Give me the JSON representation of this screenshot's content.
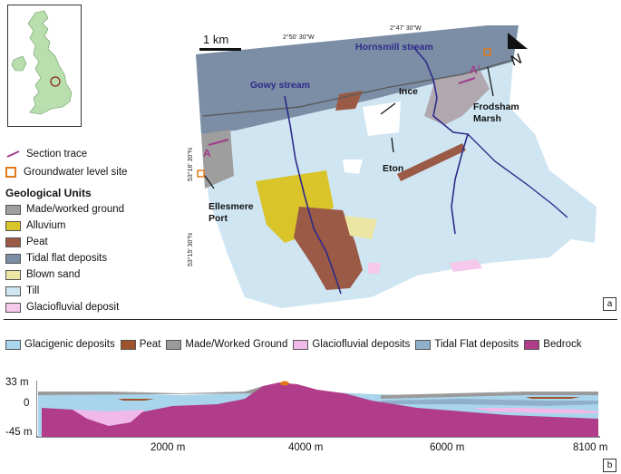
{
  "inset_map": {
    "site_marker_color": "#8b2a1a",
    "land_color": "#b9dfae"
  },
  "map": {
    "scale_bar_label": "1 km",
    "north_label": "N",
    "coord_top_1": "2°50' 30\"W",
    "coord_top_2": "2°47' 30\"W",
    "coord_left_1": "53°16' 30\"N",
    "coord_left_2": "53°15' 30\"N",
    "labels": {
      "hornsmill": "Hornsmill stream",
      "gowy": "Gowy stream",
      "ince": "Ince",
      "frodsham": "Frodsham",
      "marsh": "Marsh",
      "eton": "Eton",
      "ellesmere": "Ellesmere",
      "port": "Port",
      "section_a": "A",
      "section_a_prime": "A'"
    },
    "panel_label": "a"
  },
  "legend_a": {
    "section_trace": "Section trace",
    "groundwater_site": "Groundwater level site",
    "title": "Geological Units",
    "units": [
      {
        "label": "Made/worked ground",
        "color": "#9e9e9e"
      },
      {
        "label": "Alluvium",
        "color": "#d9c42a"
      },
      {
        "label": "Peat",
        "color": "#9a5a46"
      },
      {
        "label": "Tidal flat deposits",
        "color": "#7b8ea5"
      },
      {
        "label": "Blown sand",
        "color": "#ebe6a3"
      },
      {
        "label": "Till",
        "color": "#cfe6f2"
      },
      {
        "label": "Glaciofluvial deposit",
        "color": "#f5c8ec"
      }
    ]
  },
  "legend_b": [
    {
      "label": "Glacigenic deposits",
      "color": "#a8d4ec"
    },
    {
      "label": "Peat",
      "color": "#a0522d"
    },
    {
      "label": "Made/Worked Ground",
      "color": "#9a9a9a"
    },
    {
      "label": "Glaciofluvial deposits",
      "color": "#f1b9ea"
    },
    {
      "label": "Tidal Flat deposits",
      "color": "#8fb0c8"
    },
    {
      "label": "Bedrock",
      "color": "#b03c8a"
    }
  ],
  "section": {
    "y_ticks": [
      "33 m",
      "0",
      "-45 m"
    ],
    "x_ticks": [
      "2000 m",
      "4000 m",
      "6000 m",
      "8100 m"
    ],
    "panel_label": "b"
  }
}
